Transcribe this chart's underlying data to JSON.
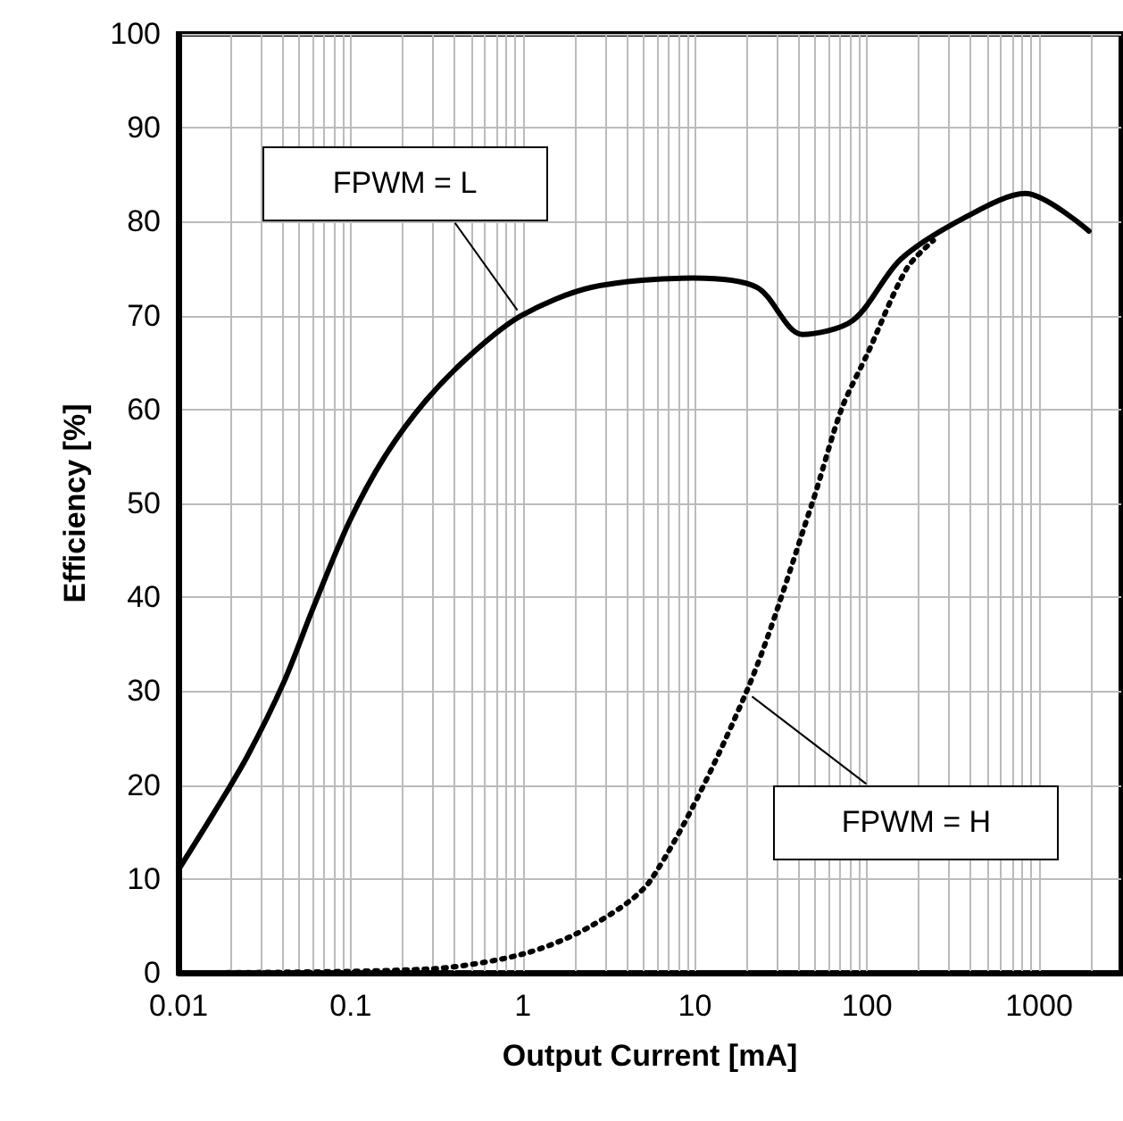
{
  "chart_data": {
    "type": "line",
    "xlabel": "Output Current [mA]",
    "ylabel": "Efficiency [%]",
    "log": "x",
    "grid": true,
    "xlim": [
      0.01,
      3000
    ],
    "ylim": [
      0,
      100
    ],
    "xticks": [
      0.01,
      {
        "value": 0.02,
        "label": null
      },
      {
        "value": 0.03,
        "label": null
      },
      {
        "value": 0.04,
        "label": null
      },
      {
        "value": 0.05,
        "label": null
      },
      {
        "value": 0.06,
        "label": null
      },
      {
        "value": 0.07,
        "label": null
      },
      {
        "value": 0.08,
        "label": null
      },
      {
        "value": 0.09,
        "label": null
      },
      0.1,
      {
        "value": 0.2,
        "label": null
      },
      {
        "value": 0.3,
        "label": null
      },
      {
        "value": 0.4,
        "label": null
      },
      {
        "value": 0.5,
        "label": null
      },
      {
        "value": 0.6,
        "label": null
      },
      {
        "value": 0.7,
        "label": null
      },
      {
        "value": 0.8,
        "label": null
      },
      {
        "value": 0.9,
        "label": null
      },
      1,
      {
        "value": 2,
        "label": null
      },
      {
        "value": 3,
        "label": null
      },
      {
        "value": 4,
        "label": null
      },
      {
        "value": 5,
        "label": null
      },
      {
        "value": 6,
        "label": null
      },
      {
        "value": 7,
        "label": null
      },
      {
        "value": 8,
        "label": null
      },
      {
        "value": 9,
        "label": null
      },
      10,
      {
        "value": 20,
        "label": null
      },
      {
        "value": 30,
        "label": null
      },
      {
        "value": 40,
        "label": null
      },
      {
        "value": 50,
        "label": null
      },
      {
        "value": 60,
        "label": null
      },
      {
        "value": 70,
        "label": null
      },
      {
        "value": 80,
        "label": null
      },
      {
        "value": 90,
        "label": null
      },
      100,
      {
        "value": 200,
        "label": null
      },
      {
        "value": 300,
        "label": null
      },
      {
        "value": 400,
        "label": null
      },
      {
        "value": 500,
        "label": null
      },
      {
        "value": 600,
        "label": null
      },
      {
        "value": 700,
        "label": null
      },
      {
        "value": 800,
        "label": null
      },
      {
        "value": 900,
        "label": null
      },
      1000,
      {
        "value": 2000,
        "label": null
      }
    ],
    "yticks": [
      0,
      10,
      20,
      30,
      40,
      50,
      60,
      70,
      80,
      90,
      100
    ],
    "series": [
      {
        "color": "#000000",
        "line_style": "solid",
        "marker": "none",
        "x": [
          0.01,
          0.016,
          0.025,
          0.041,
          0.061,
          0.098,
          0.158,
          0.275,
          0.51,
          0.98,
          2.5,
          9.8,
          23,
          42,
          83,
          157,
          375,
          830,
          1950
        ],
        "values": [
          11,
          17,
          23,
          31,
          39,
          48,
          55,
          61,
          66,
          70,
          73,
          74,
          73,
          68,
          69.5,
          76,
          80.5,
          83,
          79
        ]
      },
      {
        "color": "#000000",
        "line_style": "dotted",
        "marker": "none",
        "x": [
          0.01,
          0.28,
          1,
          2.5,
          5.6,
          20,
          48,
          71,
          101,
          170,
          243
        ],
        "values": [
          0,
          0.4,
          2,
          5,
          10,
          30,
          50,
          60,
          66,
          75,
          78
        ]
      }
    ],
    "annotations": [
      {
        "text": "FPWM = L",
        "x": 1,
        "y": 70
      },
      {
        "text": "FPWM = H",
        "x": 20,
        "y": 30
      }
    ]
  }
}
